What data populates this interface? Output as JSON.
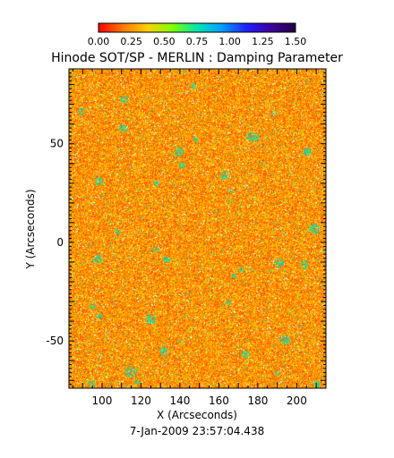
{
  "chart_data": {
    "type": "heatmap",
    "title": "Hinode SOT/SP - MERLIN : Damping Parameter",
    "xlabel": "X (Arcseconds)",
    "ylabel": "Y (Arcseconds)",
    "timestamp": "7-Jan-2009 23:57:04.438",
    "xlim": [
      83,
      215
    ],
    "ylim": [
      -74,
      88
    ],
    "x_ticks": [
      "100",
      "120",
      "140",
      "160",
      "180",
      "200"
    ],
    "x_tick_values": [
      100,
      120,
      140,
      160,
      180,
      200
    ],
    "y_ticks": [
      "-50",
      "0",
      "50"
    ],
    "y_tick_values": [
      -50,
      0,
      50
    ],
    "colorbar": {
      "range": [
        0.0,
        1.5
      ],
      "tick_labels": [
        "0.00",
        "0.25",
        "0.50",
        "0.75",
        "1.00",
        "1.25",
        "1.50"
      ],
      "tick_values": [
        0.0,
        0.25,
        0.5,
        0.75,
        1.0,
        1.25,
        1.5
      ],
      "colors": [
        "#ff0000",
        "#ff7a00",
        "#ffd000",
        "#7fff00",
        "#00e5b0",
        "#00a0ff",
        "#2020ff",
        "#4000a0",
        "#200040"
      ]
    },
    "value_distribution": {
      "dominant_range": [
        0.1,
        0.4
      ],
      "typical_value": 0.25,
      "sparse_high_values": [
        0.7,
        0.8
      ]
    }
  }
}
